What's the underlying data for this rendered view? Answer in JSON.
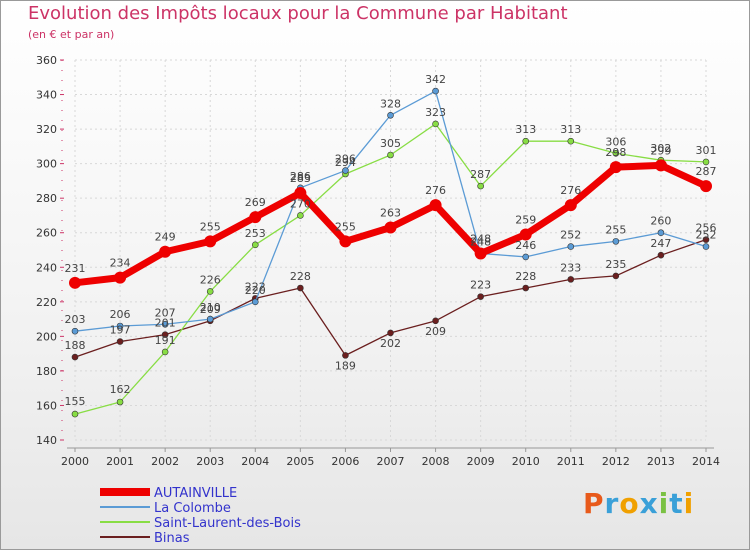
{
  "chart_data": {
    "type": "line",
    "title": "Evolution des Impôts locaux pour la Commune par Habitant",
    "subtitle": "(en € et par an)",
    "x": [
      "2000",
      "2001",
      "2002",
      "2003",
      "2004",
      "2005",
      "2006",
      "2007",
      "2008",
      "2009",
      "2010",
      "2011",
      "2012",
      "2013",
      "2014"
    ],
    "ylim": [
      140,
      360
    ],
    "yticks": [
      140,
      160,
      180,
      200,
      220,
      240,
      260,
      280,
      300,
      320,
      340,
      360
    ],
    "grid": true,
    "legend_position": "bottom-left",
    "series": [
      {
        "name": "AUTAINVILLE",
        "color": "#ee0000",
        "values": [
          231,
          234,
          249,
          255,
          269,
          283,
          255,
          263,
          276,
          248,
          259,
          276,
          298,
          299,
          287
        ]
      },
      {
        "name": "La Colombe",
        "color": "#5b9bd5",
        "values": [
          203,
          206,
          207,
          210,
          220,
          286,
          296,
          328,
          342,
          248,
          246,
          252,
          255,
          260,
          252
        ]
      },
      {
        "name": "Saint-Laurent-des-Bois",
        "color": "#88dd44",
        "values": [
          155,
          162,
          191,
          226,
          253,
          270,
          294,
          305,
          323,
          287,
          313,
          313,
          306,
          302,
          301
        ]
      },
      {
        "name": "Binas",
        "color": "#6b1f1f",
        "values": [
          188,
          197,
          201,
          209,
          222,
          228,
          189,
          202,
          209,
          223,
          228,
          233,
          235,
          247,
          256
        ]
      }
    ]
  },
  "logo": {
    "text": "Proxiti",
    "letters": [
      "P",
      "r",
      "o",
      "x",
      "i",
      "t",
      "i"
    ],
    "colors": [
      "#e85a1b",
      "#3aa0d8",
      "#f0a000",
      "#3aa0d8",
      "#7ac143",
      "#3aa0d8",
      "#f0a000"
    ]
  }
}
